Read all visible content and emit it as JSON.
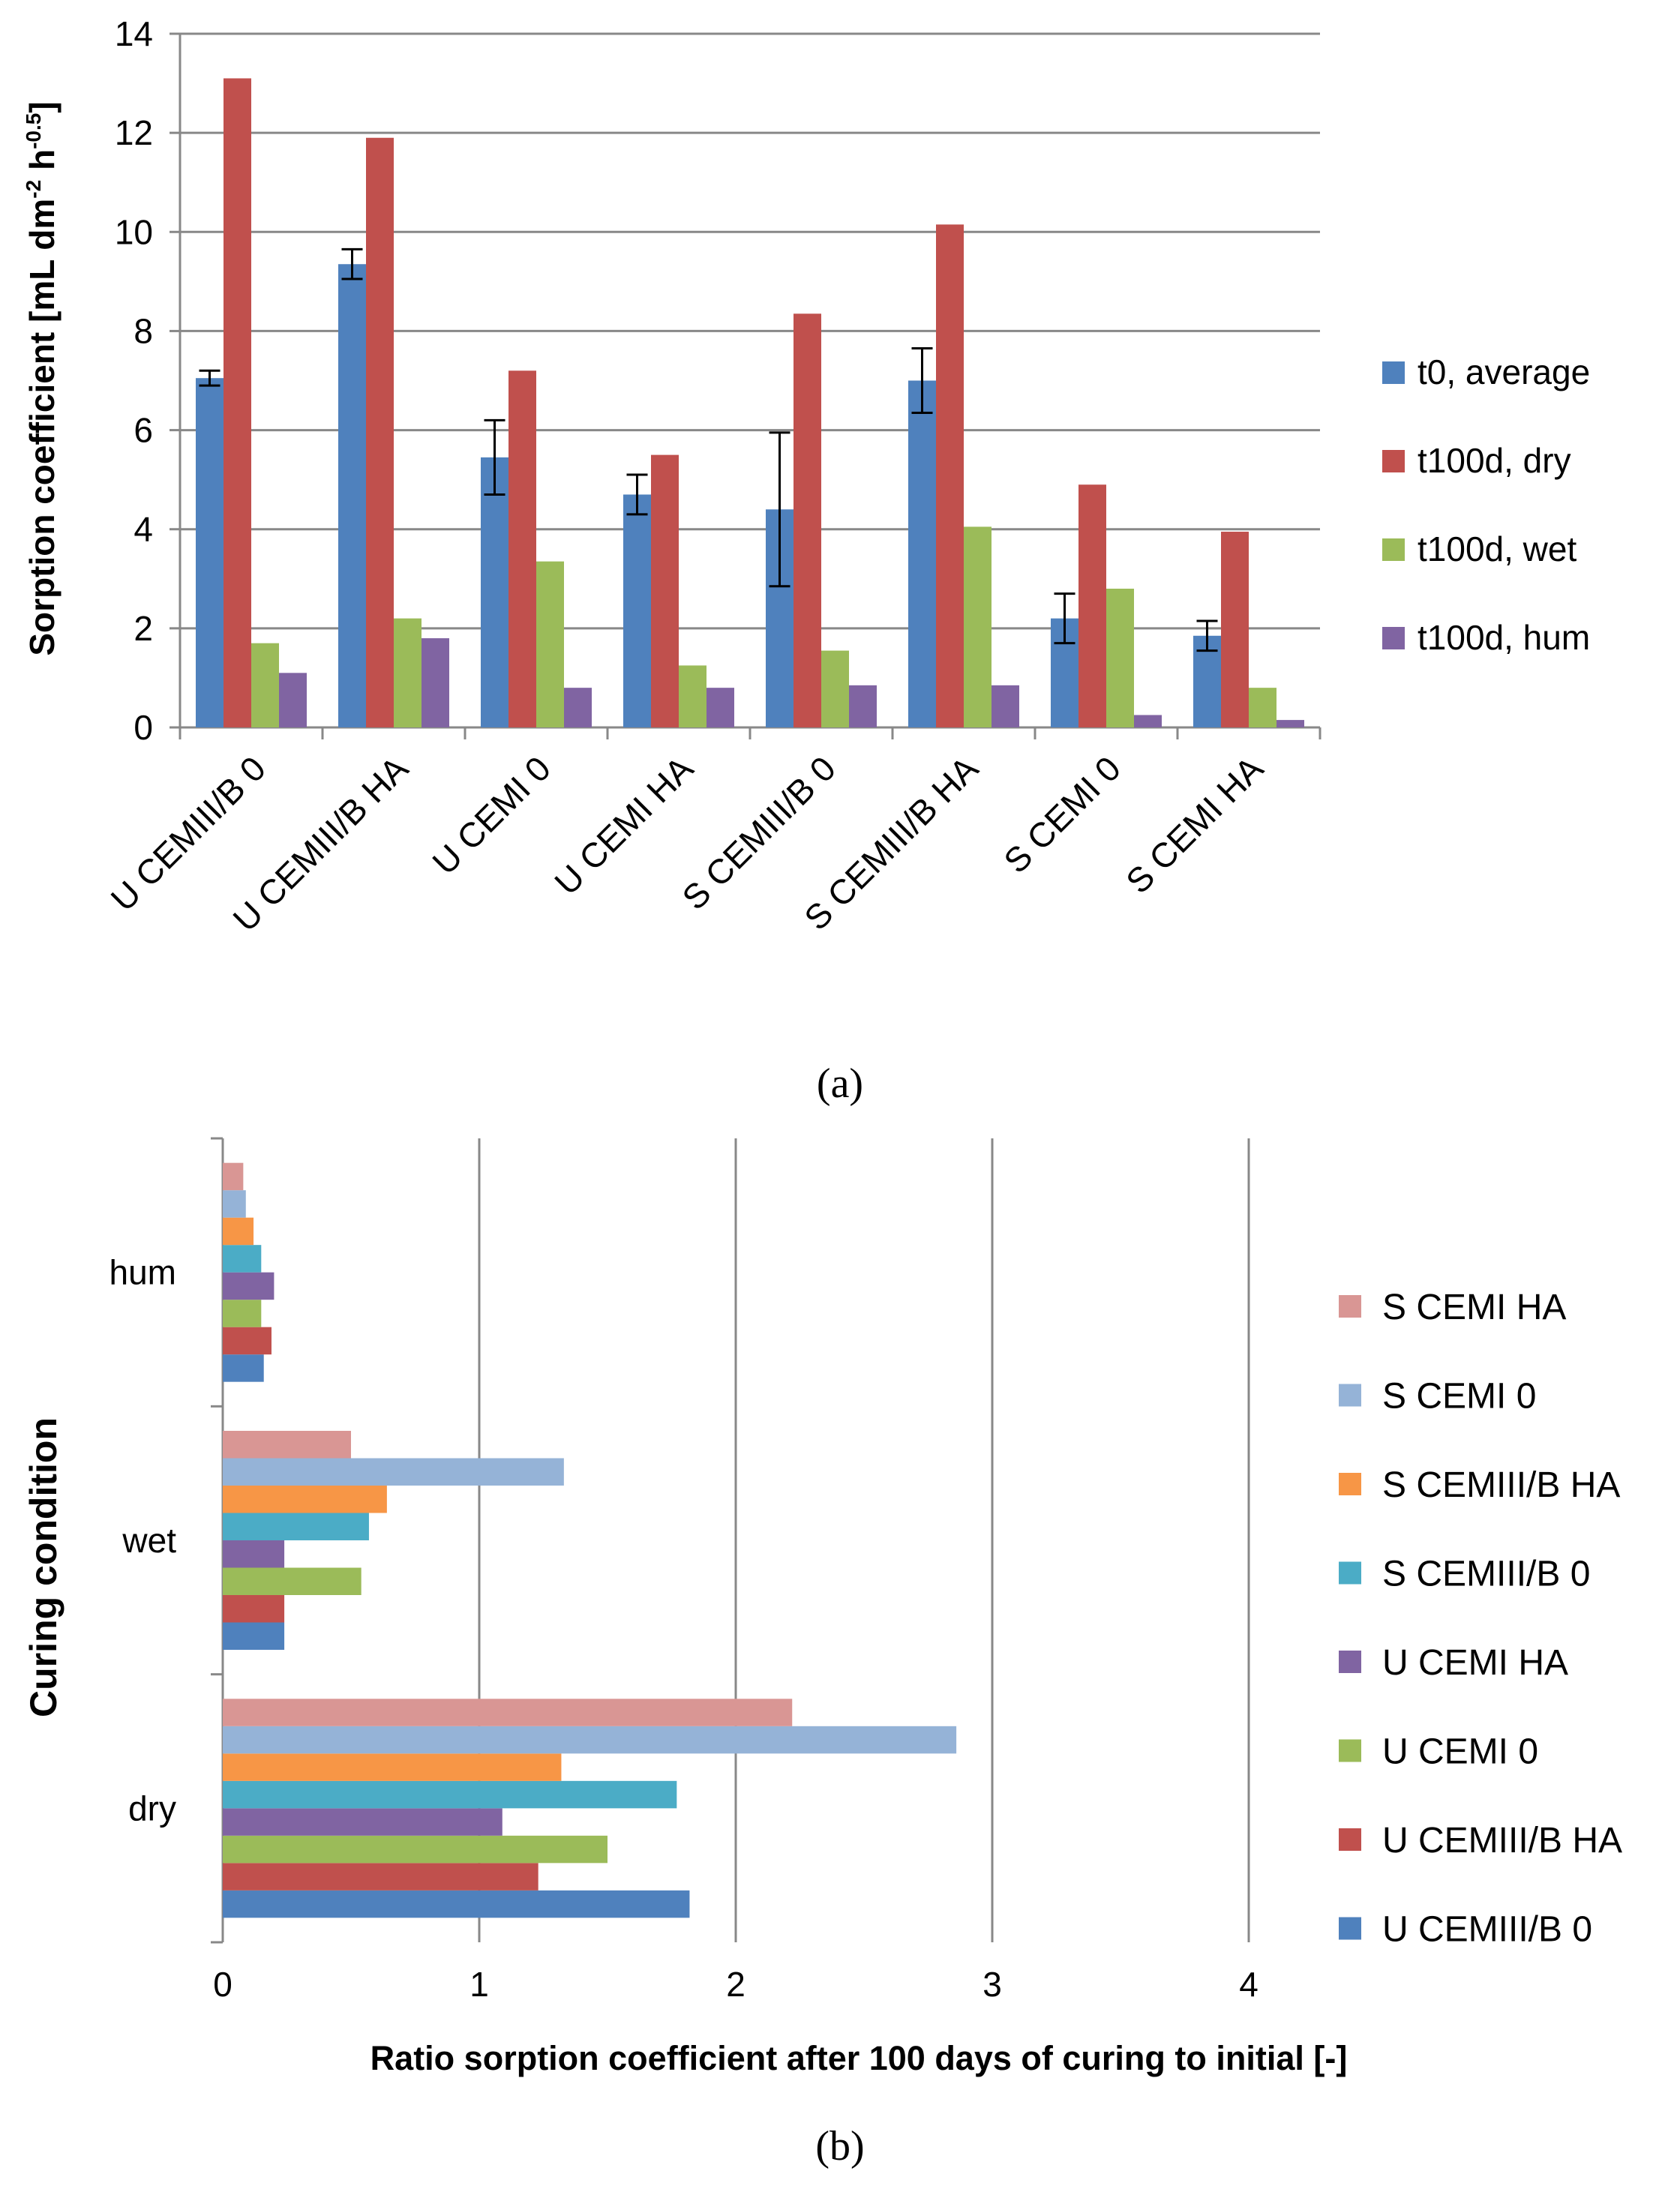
{
  "chart_data": [
    {
      "type": "bar",
      "panel_label": "(a)",
      "ylabel_main": "Sorption coefficient [mL dm",
      "ylabel_sup1": "-2",
      "ylabel_mid": " h",
      "ylabel_sup2": "-0.5",
      "ylabel_end": "]",
      "xlabel": "",
      "ylim": [
        0,
        14
      ],
      "ytick_step": 2,
      "yticks": [
        "0",
        "2",
        "4",
        "6",
        "8",
        "10",
        "12",
        "14"
      ],
      "grid": true,
      "legend_position": "right",
      "categories": [
        "U CEMIII/B 0",
        "U CEMIII/B HA",
        "U CEMI 0",
        "U CEMI HA",
        "S CEMIII/B 0",
        "S CEMIII/B HA",
        "S CEMI 0",
        "S CEMI HA"
      ],
      "series": [
        {
          "name": "t0, average",
          "color": "#4F81BD",
          "values": [
            7.05,
            9.35,
            5.45,
            4.7,
            4.4,
            7.0,
            2.2,
            1.85
          ],
          "errors": [
            0.15,
            0.3,
            0.75,
            0.4,
            1.55,
            0.65,
            0.5,
            0.3
          ]
        },
        {
          "name": "t100d, dry",
          "color": "#C0504D",
          "values": [
            13.1,
            11.9,
            7.2,
            5.5,
            8.35,
            10.15,
            4.9,
            3.95
          ]
        },
        {
          "name": "t100d, wet",
          "color": "#9BBB59",
          "values": [
            1.7,
            2.2,
            3.35,
            1.25,
            1.55,
            4.05,
            2.8,
            0.8
          ]
        },
        {
          "name": "t100d, hum",
          "color": "#8064A2",
          "values": [
            1.1,
            1.8,
            0.8,
            0.8,
            0.85,
            0.85,
            0.25,
            0.15
          ]
        }
      ]
    },
    {
      "type": "bar",
      "orientation": "horizontal",
      "panel_label": "(b)",
      "xlabel": "Ratio sorption coefficient after 100 days of curing to initial [-]",
      "ylabel": "Curing condition",
      "xlim": [
        0,
        4
      ],
      "xtick_step": 1,
      "xticks": [
        "0",
        "1",
        "2",
        "3",
        "4"
      ],
      "grid": true,
      "legend_position": "right",
      "categories": [
        "dry",
        "wet",
        "hum"
      ],
      "series": [
        {
          "name": "U CEMIII/B 0",
          "color": "#4F81BD",
          "values": [
            1.82,
            0.24,
            0.16
          ]
        },
        {
          "name": "U CEMIII/B HA",
          "color": "#C0504D",
          "values": [
            1.23,
            0.24,
            0.19
          ]
        },
        {
          "name": "U CEMI 0",
          "color": "#9BBB59",
          "values": [
            1.5,
            0.54,
            0.15
          ]
        },
        {
          "name": "U CEMI HA",
          "color": "#8064A2",
          "values": [
            1.09,
            0.24,
            0.2
          ]
        },
        {
          "name": "S CEMIII/B 0",
          "color": "#4BACC6",
          "values": [
            1.77,
            0.57,
            0.15
          ]
        },
        {
          "name": "S CEMIII/B HA",
          "color": "#F79646",
          "values": [
            1.32,
            0.64,
            0.12
          ]
        },
        {
          "name": "S CEMI 0",
          "color": "#95B3D7",
          "values": [
            2.86,
            1.33,
            0.09
          ]
        },
        {
          "name": "S CEMI HA",
          "color": "#D99694",
          "values": [
            2.22,
            0.5,
            0.08
          ]
        }
      ]
    }
  ]
}
